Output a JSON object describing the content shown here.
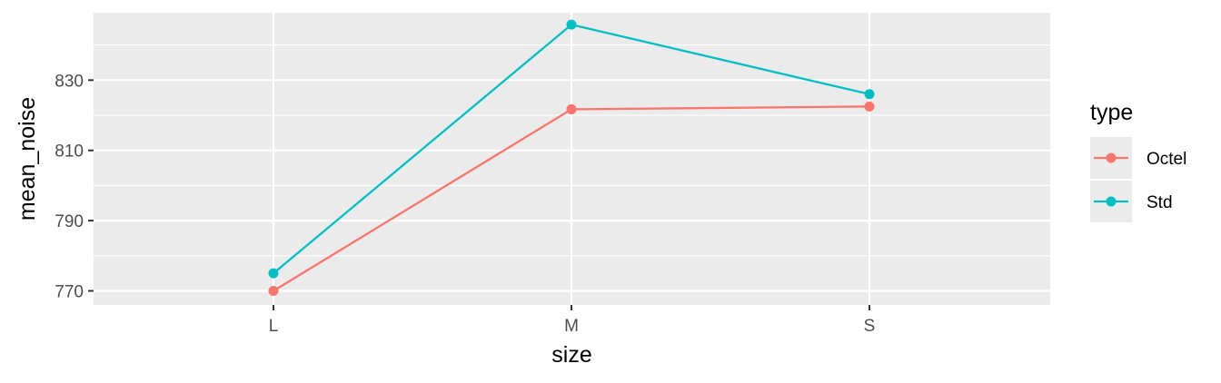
{
  "chart_data": {
    "type": "line",
    "categories": [
      "L",
      "M",
      "S"
    ],
    "series": [
      {
        "name": "Octel",
        "values": [
          770,
          821.7,
          822.5
        ],
        "color": "#F8766D"
      },
      {
        "name": "Std",
        "values": [
          775,
          845.8,
          826
        ],
        "color": "#00BFC4"
      }
    ],
    "xlabel": "size",
    "ylabel": "mean_noise",
    "ylim": [
      766,
      849.2
    ],
    "yticks": [
      770,
      790,
      810,
      830
    ],
    "legend": {
      "title": "type",
      "position": "right"
    },
    "grid": true,
    "colors": {
      "panel": "#EBEBEB",
      "grid": "#FFFFFF",
      "tick": "#333333"
    }
  }
}
